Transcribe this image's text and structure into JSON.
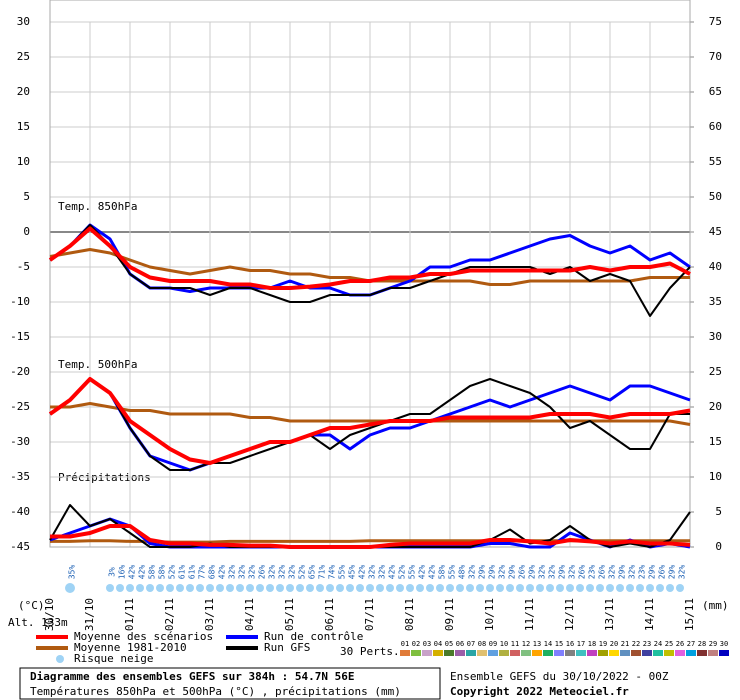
{
  "chart_data": {
    "type": "line",
    "xlim": [
      0,
      384
    ],
    "xticks": [
      {
        "value": 0,
        "label": "30/10"
      },
      {
        "value": 24,
        "label": "31/10"
      },
      {
        "value": 48,
        "label": "01/11"
      },
      {
        "value": 72,
        "label": "02/11"
      },
      {
        "value": 96,
        "label": "03/11"
      },
      {
        "value": 120,
        "label": "04/11"
      },
      {
        "value": 144,
        "label": "05/11"
      },
      {
        "value": 168,
        "label": "06/11"
      },
      {
        "value": 192,
        "label": "07/11"
      },
      {
        "value": 216,
        "label": "08/11"
      },
      {
        "value": 240,
        "label": "09/11"
      },
      {
        "value": 264,
        "label": "10/11"
      },
      {
        "value": 288,
        "label": "11/11"
      },
      {
        "value": 312,
        "label": "12/11"
      },
      {
        "value": 336,
        "label": "13/11"
      },
      {
        "value": 360,
        "label": "14/11"
      },
      {
        "value": 384,
        "label": "15/11"
      }
    ],
    "ylim": [
      -45,
      30
    ],
    "yticks": [
      30,
      25,
      20,
      15,
      10,
      5,
      0,
      -5,
      -10,
      -15,
      -20,
      -25,
      -30,
      -35,
      -40,
      -45
    ],
    "y2lim": [
      0,
      75
    ],
    "y2ticks": [
      0,
      5,
      10,
      15,
      20,
      25,
      30,
      35,
      40,
      45,
      50,
      55,
      60,
      65,
      70,
      75
    ],
    "ylabel": "(°C)",
    "y2label": "(mm)",
    "altitude": "Alt. 133m",
    "grid": true,
    "panel_labels": {
      "t850": "Temp. 850hPa",
      "t500": "Temp. 500hPa",
      "precip": "Précipitations"
    },
    "x": [
      0,
      12,
      24,
      36,
      48,
      60,
      72,
      84,
      96,
      108,
      120,
      132,
      144,
      156,
      168,
      180,
      192,
      204,
      216,
      228,
      240,
      252,
      264,
      276,
      288,
      300,
      312,
      324,
      336,
      348,
      360,
      372,
      384
    ],
    "series": [
      {
        "name": "Moyenne 1981-2010",
        "color": "#b05a10",
        "width": 3,
        "t850": [
          -3.5,
          -3,
          -2.5,
          -3,
          -4,
          -5,
          -5.5,
          -6,
          -5.5,
          -5,
          -5.5,
          -5.5,
          -6,
          -6,
          -6.5,
          -6.5,
          -7,
          -7,
          -7,
          -7,
          -7,
          -7,
          -7.5,
          -7.5,
          -7,
          -7,
          -7,
          -7,
          -7,
          -7,
          -6.5,
          -6.5,
          -6.5
        ],
        "t500": [
          -25,
          -25,
          -24.5,
          -25,
          -25.5,
          -25.5,
          -26,
          -26,
          -26,
          -26,
          -26.5,
          -26.5,
          -27,
          -27,
          -27,
          -27,
          -27,
          -27,
          -27,
          -27,
          -27,
          -27,
          -27,
          -27,
          -27,
          -27,
          -27,
          -27,
          -27,
          -27,
          -27,
          -27,
          -27.5
        ],
        "precip": [
          0.8,
          0.8,
          0.9,
          0.9,
          0.8,
          0.8,
          0.7,
          0.7,
          0.7,
          0.8,
          0.8,
          0.8,
          0.8,
          0.8,
          0.8,
          0.8,
          0.9,
          0.9,
          0.9,
          0.9,
          0.9,
          0.9,
          0.9,
          0.9,
          0.9,
          0.9,
          0.9,
          0.9,
          0.9,
          0.9,
          0.9,
          0.9,
          0.9
        ]
      },
      {
        "name": "Run de contrôle",
        "color": "#0000ff",
        "width": 3,
        "t850": [
          -4,
          -2,
          1,
          -1,
          -6,
          -8,
          -8,
          -8.5,
          -8,
          -8,
          -8,
          -8,
          -7,
          -8,
          -8,
          -9,
          -9,
          -8,
          -7,
          -5,
          -5,
          -4,
          -4,
          -3,
          -2,
          -1,
          -0.5,
          -2,
          -3,
          -2,
          -4,
          -3,
          -5
        ],
        "t500": [
          -26,
          -24,
          -21,
          -23,
          -28,
          -32,
          -33,
          -34,
          -33,
          -32,
          -31,
          -30,
          -30,
          -29,
          -29,
          -31,
          -29,
          -28,
          -28,
          -27,
          -26,
          -25,
          -24,
          -25,
          -24,
          -23,
          -22,
          -23,
          -24,
          -22,
          -22,
          -23,
          -24
        ],
        "precip": [
          1,
          2,
          3,
          4,
          3,
          0.5,
          0,
          0,
          0,
          0,
          0,
          0,
          0,
          0,
          0,
          0,
          0,
          0,
          0,
          0,
          0,
          0,
          0.5,
          0.5,
          0,
          0,
          2,
          1,
          0,
          1,
          0,
          0.5,
          0
        ]
      },
      {
        "name": "Run GFS",
        "color": "#000000",
        "width": 2,
        "t850": [
          -4,
          -2,
          1,
          -2,
          -6,
          -8,
          -8,
          -8,
          -9,
          -8,
          -8,
          -9,
          -10,
          -10,
          -9,
          -9,
          -9,
          -8,
          -8,
          -7,
          -6,
          -5,
          -5,
          -5,
          -5,
          -6,
          -5,
          -7,
          -6,
          -7,
          -12,
          -8,
          -5
        ],
        "t500": [
          -26,
          -24,
          -21,
          -23,
          -28,
          -32,
          -34,
          -34,
          -33,
          -33,
          -32,
          -31,
          -30,
          -29,
          -31,
          -29,
          -28,
          -27,
          -26,
          -26,
          -24,
          -22,
          -21,
          -22,
          -23,
          -25,
          -28,
          -27,
          -29,
          -31,
          -31,
          -26,
          -26
        ],
        "precip": [
          1,
          6,
          3,
          4,
          2,
          0,
          0,
          0,
          0.5,
          0,
          0,
          0,
          0,
          0,
          0,
          0,
          0,
          0,
          0,
          0,
          0,
          0,
          1,
          2.5,
          0.5,
          1,
          3,
          1,
          0,
          0.5,
          0,
          1,
          5
        ]
      },
      {
        "name": "Moyenne des scénarios",
        "color": "#ff0000",
        "width": 4,
        "t850": [
          -4,
          -2,
          0.5,
          -2,
          -5,
          -6.5,
          -7,
          -7,
          -7,
          -7.5,
          -7.5,
          -8,
          -8,
          -7.8,
          -7.5,
          -7,
          -7,
          -6.5,
          -6.5,
          -6,
          -6,
          -5.5,
          -5.5,
          -5.5,
          -5.5,
          -5.5,
          -5.5,
          -5,
          -5.5,
          -5,
          -5,
          -4.5,
          -6
        ],
        "t500": [
          -26,
          -24,
          -21,
          -23,
          -27,
          -29,
          -31,
          -32.5,
          -33,
          -32,
          -31,
          -30,
          -30,
          -29,
          -28,
          -28,
          -27.5,
          -27,
          -27,
          -27,
          -26.5,
          -26.5,
          -26.5,
          -26.5,
          -26.5,
          -26,
          -26,
          -26,
          -26.5,
          -26,
          -26,
          -26,
          -25.5
        ],
        "precip": [
          1.5,
          1.5,
          2,
          3,
          3,
          1,
          0.5,
          0.5,
          0.3,
          0.3,
          0.2,
          0.2,
          0,
          0,
          0,
          0,
          0,
          0.3,
          0.5,
          0.5,
          0.5,
          0.5,
          1,
          1,
          0.8,
          0.5,
          1,
          0.8,
          0.5,
          0.8,
          0.5,
          0.5,
          0.3
        ]
      }
    ],
    "legend_order": [
      3,
      0,
      1,
      2
    ],
    "snow": {
      "name": "Risque neige",
      "color": "#9fd3f5",
      "values": [
        null,
        null,
        35,
        null,
        null,
        null,
        3,
        16,
        42,
        42,
        58,
        58,
        52,
        61,
        61,
        77,
        68,
        42,
        32,
        32,
        32,
        26,
        32,
        32,
        32,
        52,
        65,
        71,
        74,
        55,
        45,
        42,
        32,
        32,
        42,
        52,
        55,
        42,
        42,
        58,
        55,
        48,
        32,
        29,
        29,
        32,
        29,
        26,
        29,
        32,
        32,
        29,
        32,
        26,
        23,
        26,
        32,
        29,
        32,
        23,
        29,
        26,
        29,
        32,
        null
      ],
      "value_labels": [
        null,
        null,
        "35%",
        null,
        null,
        null,
        "3%",
        "16%",
        "42%",
        "42%",
        "58%",
        "58%",
        "52%",
        "61%",
        "61%",
        "77%",
        "68%",
        "42%",
        "32%",
        "32%",
        "32%",
        "26%",
        "32%",
        "32%",
        "32%",
        "52%",
        "65%",
        "71%",
        "74%",
        "55%",
        "45%",
        "42%",
        "32%",
        "32%",
        "42%",
        "52%",
        "55%",
        "42%",
        "42%",
        "58%",
        "55%",
        "48%",
        "32%",
        "29%",
        "29%",
        "32%",
        "29%",
        "26%",
        "29%",
        "32%",
        "32%",
        "29%",
        "32%",
        "26%",
        "23%",
        "26%",
        "32%",
        "29%",
        "32%",
        "23%",
        "29%",
        "26%",
        "29%",
        "32%",
        null
      ]
    },
    "perturbations": {
      "label": "30 Perts.",
      "members": [
        "01",
        "02",
        "03",
        "04",
        "05",
        "06",
        "07",
        "08",
        "09",
        "10",
        "11",
        "12",
        "13",
        "14",
        "15",
        "16",
        "17",
        "18",
        "19",
        "20",
        "21",
        "22",
        "23",
        "24",
        "25",
        "26",
        "27",
        "28",
        "29",
        "30"
      ],
      "colors": [
        "#e07b39",
        "#7fbf3f",
        "#c8a2c8",
        "#d4b000",
        "#4a7a2a",
        "#9b5ea8",
        "#2aa5a5",
        "#e0c070",
        "#60a0e0",
        "#b0b040",
        "#d06060",
        "#80c080",
        "#ffa500",
        "#20b060",
        "#8080ff",
        "#808080",
        "#40c0c0",
        "#c040c0",
        "#a0a000",
        "#ffd700",
        "#6090c0",
        "#a05030",
        "#4040a0",
        "#20c0a0",
        "#c0c000",
        "#e060e0",
        "#00a0e0",
        "#803030",
        "#c08080",
        "#0000c0"
      ]
    },
    "footer": {
      "title": "Diagramme des ensembles GEFS sur 384h : 54.7N 56E",
      "subtitle": "Températures 850hPa et 500hPa (°C) , précipitations (mm)",
      "run": "Ensemble GEFS du 30/10/2022 - 00Z",
      "copyright": "Copyright 2022 Meteociel.fr"
    }
  }
}
